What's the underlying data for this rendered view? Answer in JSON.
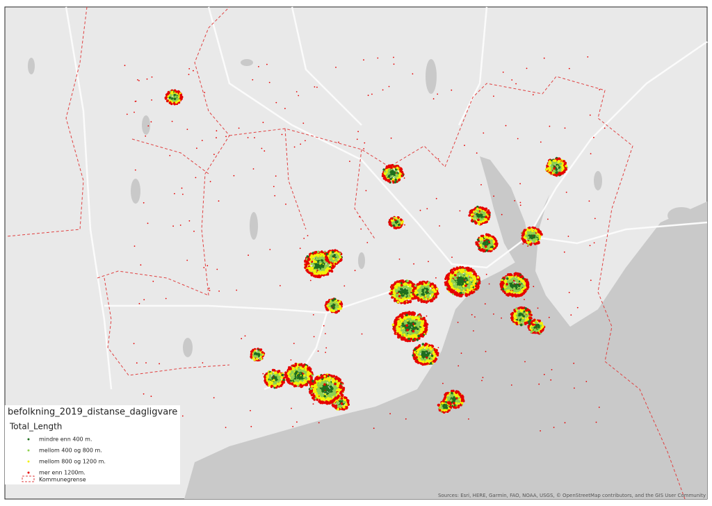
{
  "legend": {
    "title": "befolkning_2019_distanse_dagligvare",
    "subtitle": "Total_Length",
    "items": [
      {
        "label": "mindre enn 400 m.",
        "color": "#1f6e1f"
      },
      {
        "label": "mellom 400 og 800 m.",
        "color": "#8fd14f"
      },
      {
        "label": "mellom 800 og 1200 m.",
        "color": "#f2f20a"
      },
      {
        "label": "mer enn 1200m.",
        "color": "#e60000"
      }
    ],
    "boundary": {
      "label": "Kommunegrense",
      "color": "#e04040"
    }
  },
  "attribution": "Sources: Esri, HERE, Garmin, FAO, NOAA, USGS, © OpenStreetMap contributors, and the GIS User Community"
}
